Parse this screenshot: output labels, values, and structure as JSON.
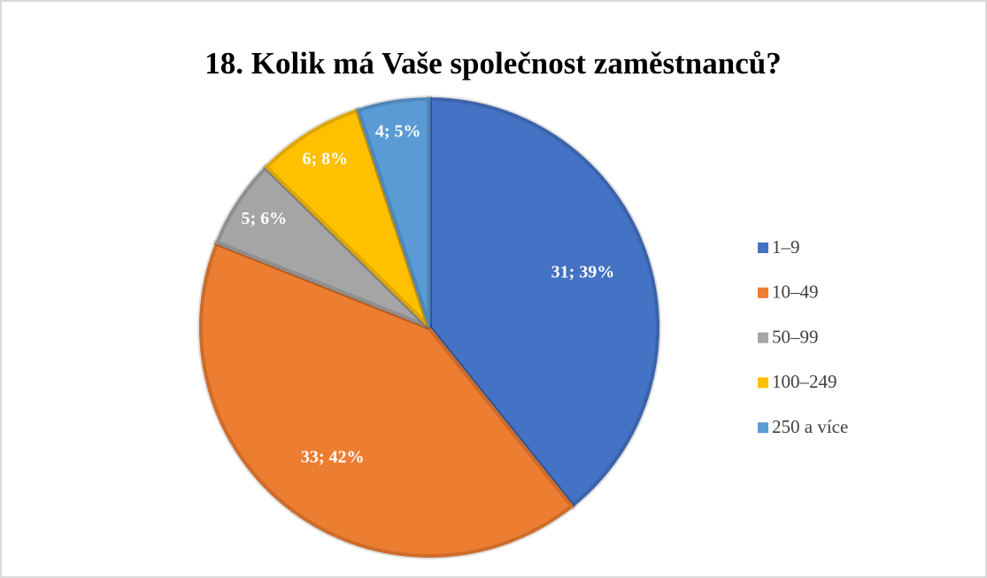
{
  "chart_data": {
    "type": "pie",
    "title": "18. Kolik má Vaše společnost zaměstnanců?",
    "categories": [
      "1–9",
      "10–49",
      "50–99",
      "100–249",
      "250 a více"
    ],
    "values": [
      31,
      33,
      5,
      6,
      4
    ],
    "value_labels": [
      "31; 39%",
      "33; 42%",
      "5; 6%",
      "6; 8%",
      "4; 5%"
    ],
    "colors": [
      "#4472c4",
      "#ed7d31",
      "#a5a5a5",
      "#ffc000",
      "#5b9bd5"
    ],
    "legend": "right"
  }
}
